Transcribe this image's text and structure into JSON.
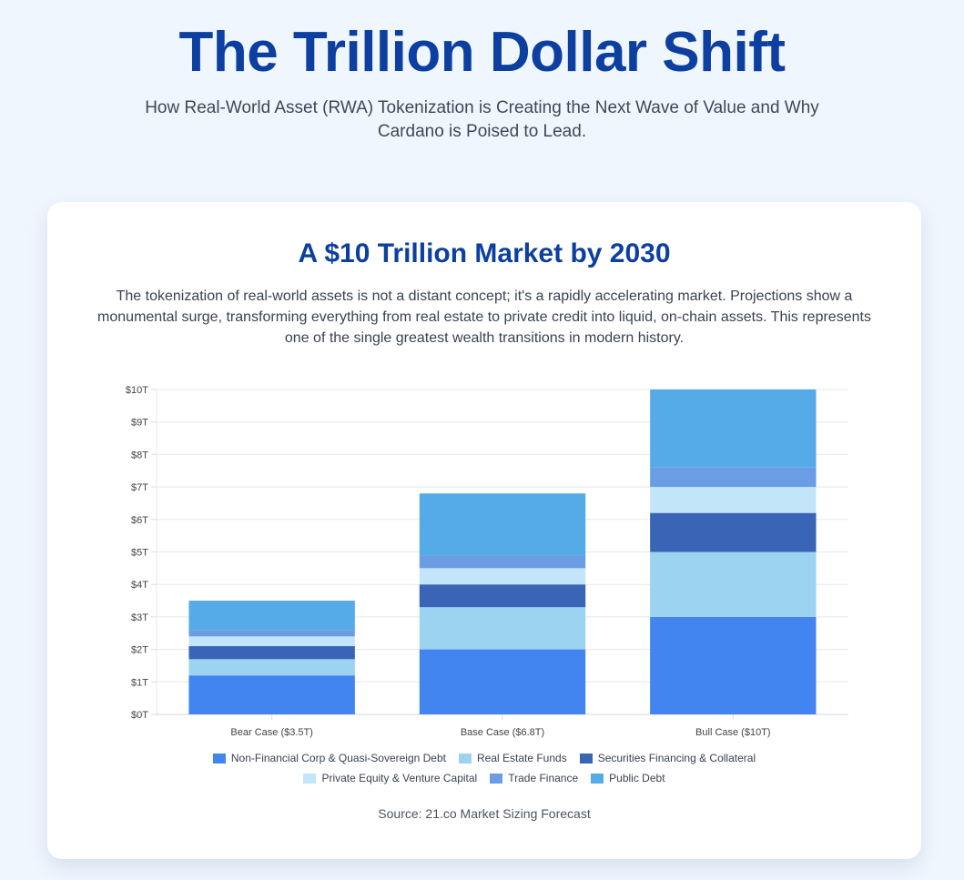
{
  "header": {
    "title": "The Trillion Dollar Shift",
    "subtitle": "How Real-World Asset (RWA) Tokenization is Creating the Next Wave of Value and Why Cardano is Poised to Lead."
  },
  "card": {
    "title": "A $10 Trillion Market by 2030",
    "description": "The tokenization of real-world assets is not a distant concept; it's a rapidly accelerating market. Projections show a monumental surge, transforming everything from real estate to private credit into liquid, on-chain assets. This represents one of the single greatest wealth transitions in modern history.",
    "source": "Source: 21.co Market Sizing Forecast"
  },
  "chart_data": {
    "type": "bar",
    "stacked": true,
    "title": "",
    "xlabel": "",
    "ylabel": "",
    "ylim": [
      0,
      10
    ],
    "y_ticks": [
      "$0T",
      "$1T",
      "$2T",
      "$3T",
      "$4T",
      "$5T",
      "$6T",
      "$7T",
      "$8T",
      "$9T",
      "$10T"
    ],
    "grid": true,
    "legend_position": "bottom",
    "categories": [
      "Bear Case ($3.5T)",
      "Base Case ($6.8T)",
      "Bull Case ($10T)"
    ],
    "series": [
      {
        "name": "Non-Financial Corp & Quasi-Sovereign Debt",
        "color": "#4285f0",
        "values": [
          1.2,
          2.0,
          3.0
        ]
      },
      {
        "name": "Real Estate Funds",
        "color": "#9bd3f0",
        "values": [
          0.5,
          1.3,
          2.0
        ]
      },
      {
        "name": "Securities Financing & Collateral",
        "color": "#3a64b5",
        "values": [
          0.4,
          0.7,
          1.2
        ]
      },
      {
        "name": "Private Equity & Venture Capital",
        "color": "#c3e5f9",
        "values": [
          0.3,
          0.5,
          0.8
        ]
      },
      {
        "name": "Trade Finance",
        "color": "#6a9de3",
        "values": [
          0.2,
          0.4,
          0.6
        ]
      },
      {
        "name": "Public Debt",
        "color": "#55aae8",
        "values": [
          0.9,
          1.9,
          2.4
        ]
      }
    ]
  }
}
